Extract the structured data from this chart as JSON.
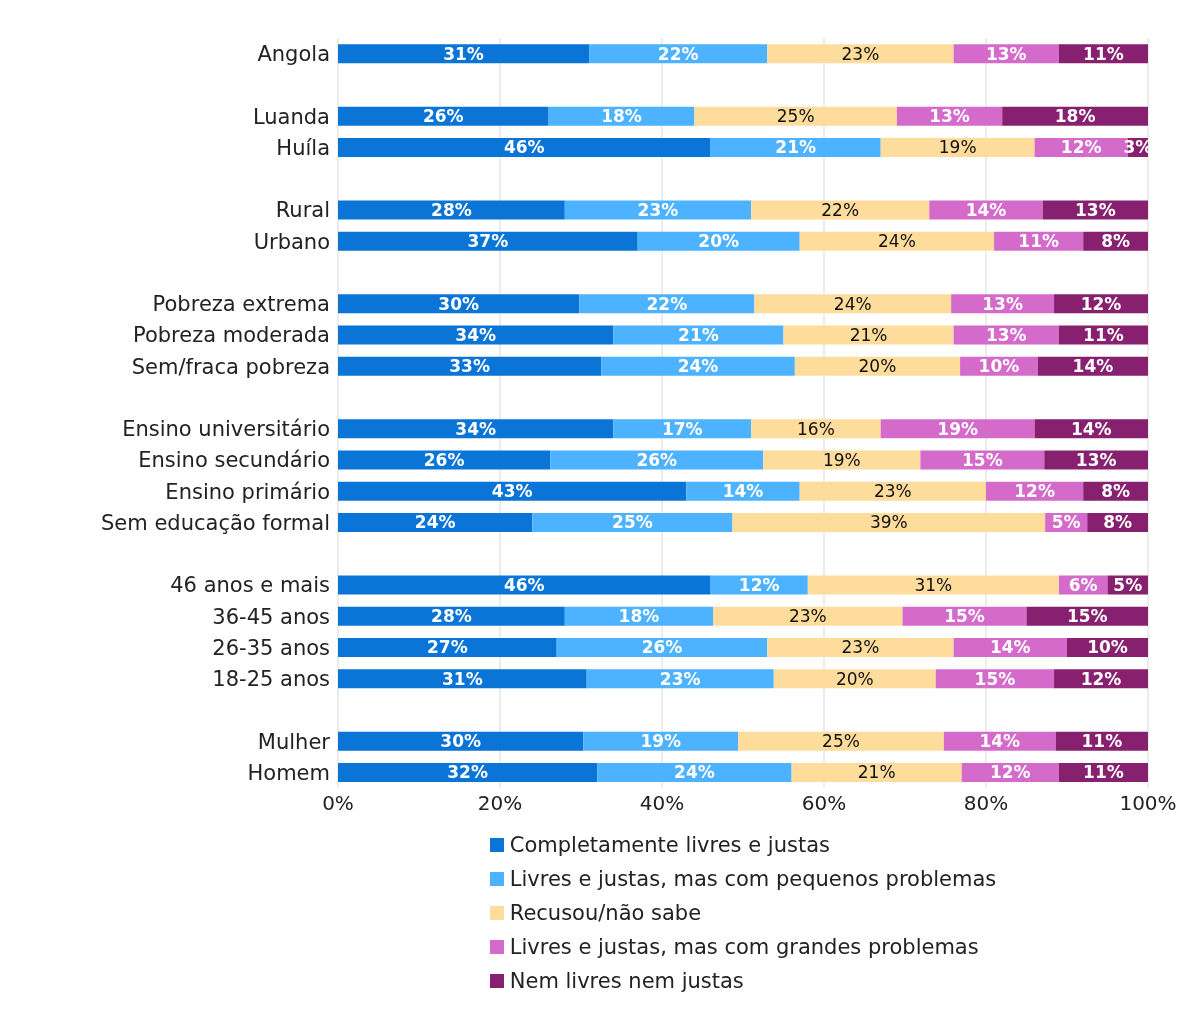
{
  "chart_data": {
    "type": "bar",
    "orientation": "horizontal",
    "stacked": true,
    "categories": [
      "Angola",
      null,
      "Luanda",
      "Huíla",
      null,
      "Rural",
      "Urbano",
      null,
      "Pobreza extrema",
      "Pobreza moderada",
      "Sem/fraca pobreza",
      null,
      "Ensino universitário",
      "Ensino secundário",
      "Ensino primário",
      "Sem educação formal",
      null,
      "46 anos e mais",
      "36-45 anos",
      "26-35 anos",
      "18-25 anos",
      null,
      "Mulher",
      "Homem"
    ],
    "series": [
      {
        "name": "Completamente livres e justas",
        "color": "#0a75d6",
        "values": [
          31,
          null,
          26,
          46,
          null,
          28,
          37,
          null,
          29.8,
          34,
          32.5,
          null,
          34,
          26.2,
          43,
          24,
          null,
          46,
          28,
          27,
          30.7,
          null,
          30.3,
          32
        ],
        "value_labels": [
          "31%",
          null,
          "26%",
          "46%",
          null,
          "28%",
          "37%",
          null,
          "30%",
          "34%",
          "33%",
          null,
          "34%",
          "26%",
          "43%",
          "24%",
          null,
          "46%",
          "28%",
          "27%",
          "31%",
          null,
          "30%",
          "32%"
        ]
      },
      {
        "name": "Livres e justas, mas com pequenos problemas",
        "color": "#4db2ff",
        "values": [
          22,
          null,
          18,
          21,
          null,
          23,
          20,
          null,
          21.6,
          21,
          23.9,
          null,
          17,
          26.3,
          14,
          24.7,
          null,
          12,
          18.3,
          26,
          23.1,
          null,
          19.1,
          24
        ],
        "value_labels": [
          "22%",
          null,
          "18%",
          "21%",
          null,
          "23%",
          "20%",
          null,
          "22%",
          "21%",
          "24%",
          null,
          "17%",
          "26%",
          "14%",
          "25%",
          null,
          "12%",
          "18%",
          "26%",
          "23%",
          null,
          "19%",
          "24%"
        ]
      },
      {
        "name": "Recusou/não sabe",
        "color": "#fddc9c",
        "values": [
          23,
          null,
          25,
          19,
          null,
          22,
          24,
          null,
          24.3,
          21,
          20.4,
          null,
          16,
          19.4,
          23,
          38.6,
          null,
          31,
          23.4,
          23,
          20,
          null,
          25.4,
          21
        ],
        "value_labels": [
          "23%",
          null,
          "25%",
          "19%",
          null,
          "22%",
          "24%",
          null,
          "24%",
          "21%",
          "20%",
          null,
          "16%",
          "19%",
          "23%",
          "39%",
          null,
          "31%",
          "23%",
          "23%",
          "20%",
          null,
          "25%",
          "21%"
        ]
      },
      {
        "name": "Livres e justas, mas com grandes problemas",
        "color": "#d46bcb",
        "values": [
          13,
          null,
          13,
          11.5,
          null,
          14,
          11,
          null,
          12.7,
          13,
          9.6,
          null,
          19,
          15.3,
          12,
          5.2,
          null,
          6,
          15.3,
          14,
          14.6,
          null,
          13.8,
          12
        ],
        "value_labels": [
          "13%",
          null,
          "13%",
          "12%",
          null,
          "14%",
          "11%",
          null,
          "13%",
          "13%",
          "10%",
          null,
          "19%",
          "15%",
          "12%",
          "5%",
          null,
          "6%",
          "15%",
          "14%",
          "15%",
          null,
          "14%",
          "12%"
        ]
      },
      {
        "name": "Nem livres nem justas",
        "color": "#86206f",
        "values": [
          11,
          null,
          18,
          2.5,
          null,
          13,
          8,
          null,
          11.6,
          11,
          13.6,
          null,
          14,
          12.8,
          8,
          7.5,
          null,
          5,
          15,
          10,
          11.6,
          null,
          11.4,
          11
        ],
        "value_labels": [
          "11%",
          null,
          "18%",
          "3%",
          null,
          "13%",
          "8%",
          null,
          "12%",
          "11%",
          "14%",
          null,
          "14%",
          "13%",
          "8%",
          "8%",
          null,
          "5%",
          "15%",
          "10%",
          "12%",
          null,
          "11%",
          "11%"
        ]
      }
    ],
    "xlim": [
      0,
      100
    ],
    "xticks": [
      {
        "value": 0,
        "label": "0%"
      },
      {
        "value": 20,
        "label": "20%"
      },
      {
        "value": 40,
        "label": "40%"
      },
      {
        "value": 60,
        "label": "60%"
      },
      {
        "value": 80,
        "label": "80%"
      },
      {
        "value": 100,
        "label": "100%"
      }
    ],
    "grid": "x",
    "legend": "bottom"
  }
}
